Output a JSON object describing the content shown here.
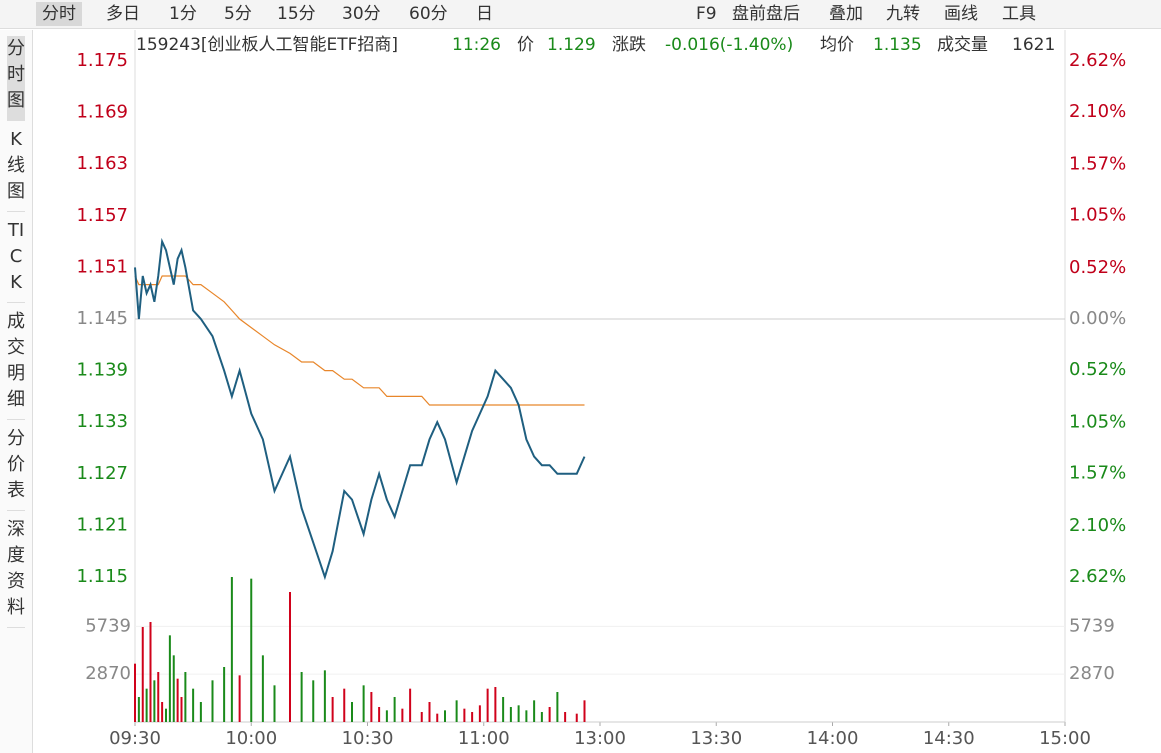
{
  "toolbar": {
    "tabs": [
      "分时",
      "多日",
      "1分",
      "5分",
      "15分",
      "30分",
      "60分",
      "日"
    ],
    "tools": [
      "F9",
      "盘前盘后",
      "叠加",
      "九转",
      "画线",
      "工具"
    ]
  },
  "sidebar": [
    "分时图",
    "K线图",
    "TICK",
    "成交明细",
    "分价表",
    "深度资料"
  ],
  "info": {
    "code": "159243[创业板人工智能ETF招商]",
    "time": "11:26",
    "price_label": "价",
    "price": 1.129,
    "change_label": "涨跌",
    "change": "-0.016(-1.40%)",
    "avg_label": "均价",
    "avg": 1.135,
    "vol_label": "成交量",
    "vol": 1621
  },
  "chart_data": {
    "type": "line",
    "x": [
      0,
      1,
      2,
      3,
      4,
      5,
      6,
      7,
      8,
      9,
      10,
      11,
      12,
      13,
      15,
      17,
      20,
      23,
      25,
      27,
      30,
      33,
      36,
      40,
      43,
      46,
      49,
      51,
      54,
      56,
      59,
      61,
      63,
      65,
      67,
      69,
      71,
      74,
      76,
      78,
      80,
      83,
      85,
      87,
      89,
      91,
      93,
      95,
      97,
      99,
      101,
      103,
      105,
      107,
      109,
      111,
      114,
      116
    ],
    "series": [
      {
        "color": "#1f5f80",
        "values": [
          1.151,
          1.145,
          1.15,
          1.148,
          1.149,
          1.147,
          1.15,
          1.154,
          1.153,
          1.151,
          1.149,
          1.152,
          1.153,
          1.151,
          1.146,
          1.145,
          1.143,
          1.139,
          1.136,
          1.139,
          1.134,
          1.131,
          1.125,
          1.129,
          1.123,
          1.119,
          1.115,
          1.118,
          1.125,
          1.124,
          1.12,
          1.124,
          1.127,
          1.124,
          1.122,
          1.125,
          1.128,
          1.128,
          1.131,
          1.133,
          1.131,
          1.126,
          1.129,
          1.132,
          1.134,
          1.136,
          1.139,
          1.138,
          1.137,
          1.135,
          1.131,
          1.129,
          1.128,
          1.128,
          1.127,
          1.127,
          1.127,
          1.129
        ]
      },
      {
        "color": "#e8862a",
        "values": [
          1.15,
          1.149,
          1.149,
          1.149,
          1.149,
          1.149,
          1.149,
          1.15,
          1.15,
          1.15,
          1.15,
          1.15,
          1.15,
          1.15,
          1.149,
          1.149,
          1.148,
          1.147,
          1.146,
          1.145,
          1.144,
          1.143,
          1.142,
          1.141,
          1.14,
          1.14,
          1.139,
          1.139,
          1.138,
          1.138,
          1.137,
          1.137,
          1.137,
          1.136,
          1.136,
          1.136,
          1.136,
          1.136,
          1.135,
          1.135,
          1.135,
          1.135,
          1.135,
          1.135,
          1.135,
          1.135,
          1.135,
          1.135,
          1.135,
          1.135,
          1.135,
          1.135,
          1.135,
          1.135,
          1.135,
          1.135,
          1.135,
          1.135
        ]
      }
    ],
    "volume": {
      "up_color": "#d0021b",
      "down_color": "#1a8a1a",
      "ylim": [
        0,
        8700
      ],
      "yticks": [
        2870,
        5739
      ],
      "values": [
        3500,
        1500,
        5700,
        2000,
        6000,
        2500,
        3000,
        1200,
        800,
        5200,
        4000,
        2600,
        1500,
        3000,
        2000,
        1200,
        2500,
        3300,
        8700,
        2800,
        8600,
        4000,
        2200,
        7800,
        3000,
        2500,
        3100,
        1500,
        2000,
        1200,
        2200,
        1800,
        900,
        700,
        1500,
        800,
        2000,
        600,
        1200,
        500,
        700,
        1300,
        800,
        600,
        1000,
        2000,
        2100,
        1500,
        900,
        1000,
        700,
        1300,
        600,
        900,
        1800,
        600,
        500,
        1300
      ]
    },
    "xlim": [
      0,
      240
    ],
    "xticks": [
      {
        "value": 0,
        "label": "09:30"
      },
      {
        "value": 30,
        "label": "10:00"
      },
      {
        "value": 60,
        "label": "10:30"
      },
      {
        "value": 90,
        "label": "11:00"
      },
      {
        "value": 120,
        "label": "13:00"
      },
      {
        "value": 150,
        "label": "13:30"
      },
      {
        "value": 180,
        "label": "14:00"
      },
      {
        "value": 210,
        "label": "14:30"
      },
      {
        "value": 240,
        "label": "15:00"
      }
    ],
    "ylim": [
      1.115,
      1.175
    ],
    "yticks": [
      1.175,
      1.169,
      1.163,
      1.157,
      1.151,
      1.145,
      1.139,
      1.133,
      1.127,
      1.121,
      1.115
    ],
    "y2lim": [
      -2.62,
      2.62
    ],
    "y2ticks": [
      {
        "value": 2.62,
        "label": "2.62%"
      },
      {
        "value": 2.1,
        "label": "2.10%"
      },
      {
        "value": 1.57,
        "label": "1.57%"
      },
      {
        "value": 1.05,
        "label": "1.05%"
      },
      {
        "value": 0.52,
        "label": "0.52%"
      },
      {
        "value": 0,
        "label": "0.00%"
      },
      {
        "value": -0.52,
        "label": "0.52%"
      },
      {
        "value": -1.05,
        "label": "1.05%"
      },
      {
        "value": -1.57,
        "label": "1.57%"
      },
      {
        "value": -2.1,
        "label": "2.10%"
      },
      {
        "value": -2.62,
        "label": "2.62%"
      }
    ]
  }
}
